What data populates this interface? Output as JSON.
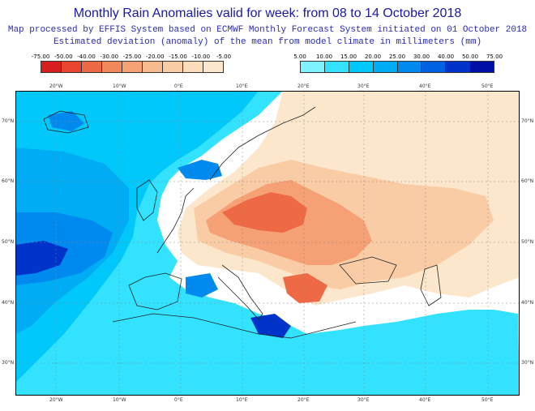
{
  "title": "Monthly Rain Anomalies valid for week: from 08 to 14 October 2018",
  "subtitle_1": "Map processed by EFFIS System based on ECMWF Monthly Forecast System initiated on 01 October 2018",
  "subtitle_2": "Estimated deviation (anomaly) of the mean from model climate in millimeters (mm)",
  "legend_negative": {
    "labels": [
      "-75.00",
      "-50.00",
      "-40.00",
      "-30.00",
      "-25.00",
      "-20.00",
      "-15.00",
      "-10.00",
      "-5.00"
    ],
    "colors": [
      "#d71e1e",
      "#e8442e",
      "#ee6a46",
      "#f2875c",
      "#f5a175",
      "#f7b98e",
      "#f9cca5",
      "#fbdcbb",
      "#fde7cc"
    ]
  },
  "legend_positive": {
    "labels": [
      "5.00",
      "10.00",
      "15.00",
      "20.00",
      "25.00",
      "30.00",
      "40.00",
      "50.00",
      "75.00"
    ],
    "colors": [
      "#7ff2ff",
      "#33e2ff",
      "#00c8fa",
      "#00adf5",
      "#008aef",
      "#0062e3",
      "#0033c9",
      "#0010a6"
    ]
  },
  "lon_labels": [
    "20°W",
    "10°W",
    "0°E",
    "10°E",
    "20°E",
    "30°E",
    "40°E",
    "50°E"
  ],
  "lat_labels": [
    "70°N",
    "60°N",
    "50°N",
    "40°N",
    "30°N"
  ],
  "colors": {
    "land": "#ffffff",
    "coast": "#222222",
    "grid": "#888888",
    "title": "#1a1a9e"
  }
}
